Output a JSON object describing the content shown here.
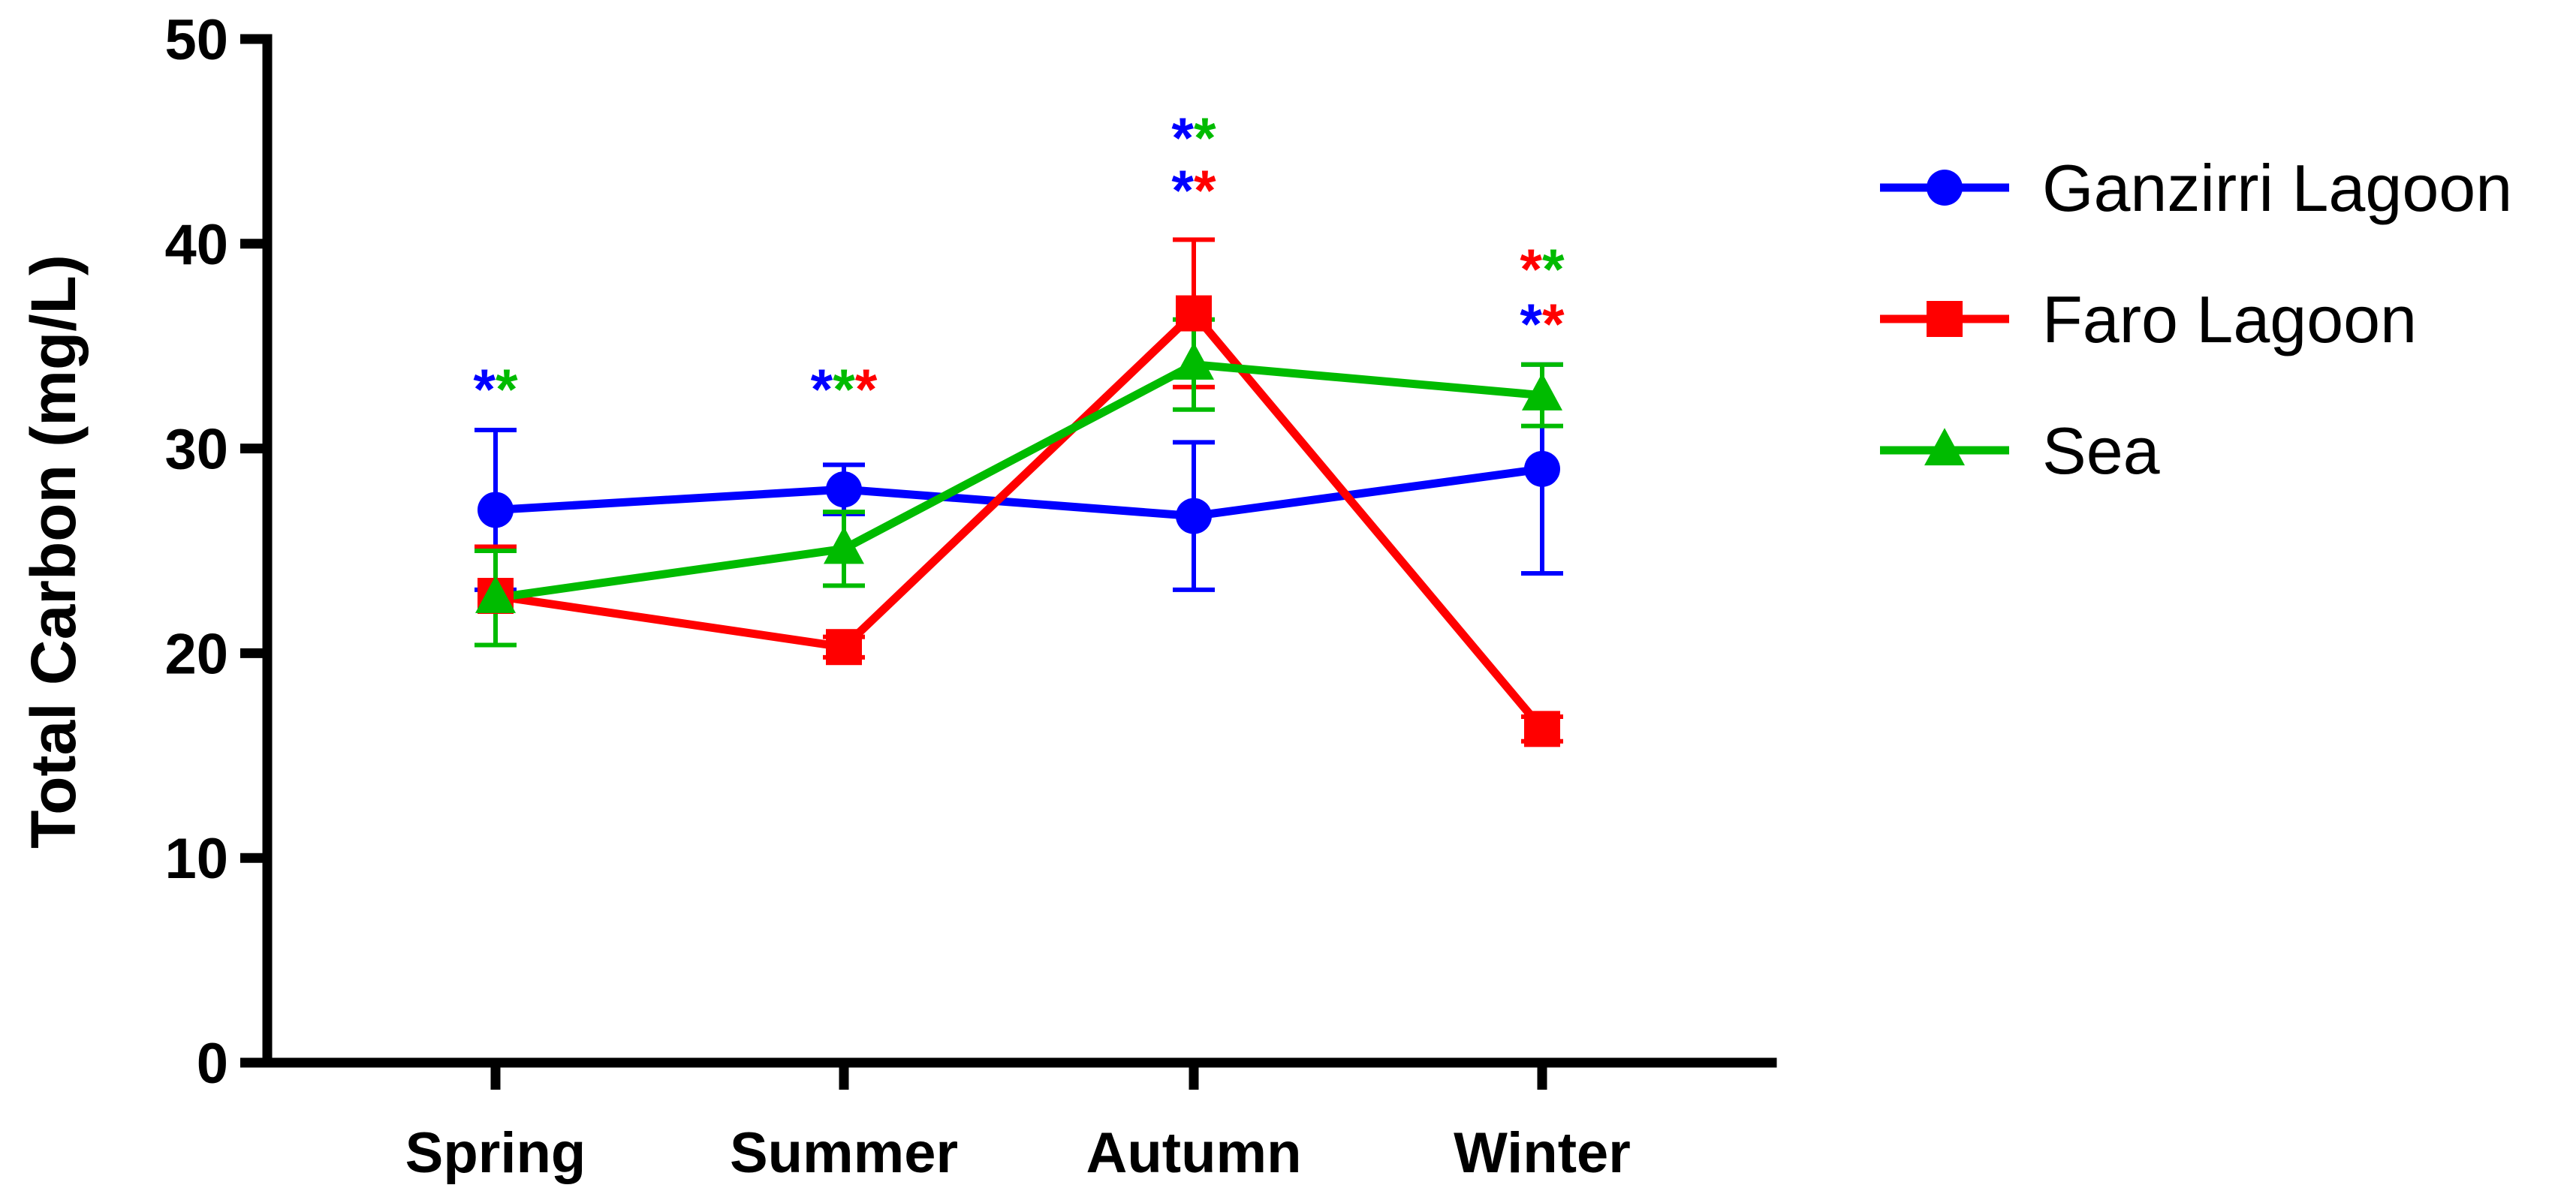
{
  "chart_data": {
    "type": "line",
    "title": "",
    "xlabel": "",
    "ylabel": "Total Carbon (mg/L)",
    "ylim": [
      0,
      50
    ],
    "yticks": [
      0,
      10,
      20,
      30,
      40,
      50
    ],
    "grid": false,
    "legend_position": "right",
    "categories": [
      "Spring",
      "Summer",
      "Autumn",
      "Winter"
    ],
    "series": [
      {
        "name": "Ganzirri Lagoon",
        "color": "#0000ff",
        "marker": "circle",
        "values": [
          27.0,
          28.0,
          26.7,
          29.0
        ],
        "errors": [
          3.9,
          1.2,
          3.6,
          5.1
        ]
      },
      {
        "name": "Faro Lagoon",
        "color": "#ff0000",
        "marker": "square",
        "values": [
          22.8,
          20.3,
          36.6,
          16.3
        ],
        "errors": [
          2.4,
          0.5,
          3.6,
          0.6
        ]
      },
      {
        "name": "Sea",
        "color": "#00bb00",
        "marker": "triangle",
        "values": [
          22.7,
          25.1,
          34.1,
          32.6
        ],
        "errors": [
          2.3,
          1.8,
          2.2,
          1.5
        ]
      }
    ],
    "annotations": [
      {
        "category": "Spring",
        "rows": [
          [
            {
              "text": "*",
              "color": "#0000ff"
            },
            {
              "text": "*",
              "color": "#00bb00"
            }
          ]
        ]
      },
      {
        "category": "Summer",
        "rows": [
          [
            {
              "text": "*",
              "color": "#0000ff"
            },
            {
              "text": "*",
              "color": "#00bb00"
            },
            {
              "text": "*",
              "color": "#ff0000"
            }
          ]
        ]
      },
      {
        "category": "Autumn",
        "rows": [
          [
            {
              "text": "*",
              "color": "#0000ff"
            },
            {
              "text": "*",
              "color": "#00bb00"
            }
          ],
          [
            {
              "text": "*",
              "color": "#0000ff"
            },
            {
              "text": "*",
              "color": "#ff0000"
            }
          ]
        ]
      },
      {
        "category": "Winter",
        "rows": [
          [
            {
              "text": "*",
              "color": "#ff0000"
            },
            {
              "text": "*",
              "color": "#00bb00"
            }
          ],
          [
            {
              "text": "*",
              "color": "#0000ff"
            },
            {
              "text": "*",
              "color": "#ff0000"
            }
          ]
        ]
      }
    ]
  }
}
